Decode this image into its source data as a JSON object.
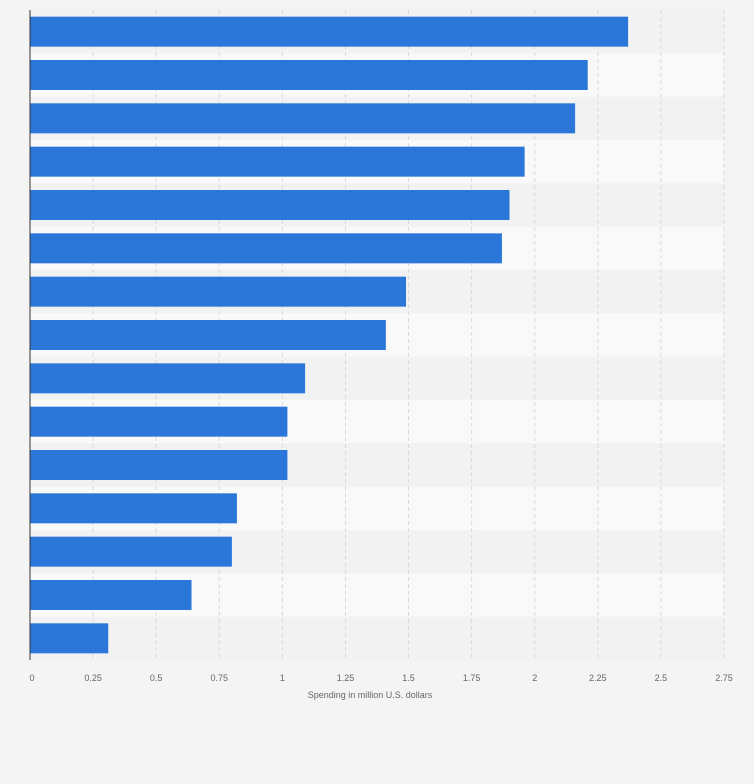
{
  "chart_data": {
    "type": "bar",
    "orientation": "horizontal",
    "values": [
      2.37,
      2.21,
      2.16,
      1.96,
      1.9,
      1.87,
      1.49,
      1.41,
      1.09,
      1.02,
      1.02,
      0.82,
      0.8,
      0.64,
      0.31
    ],
    "x_ticks": [
      "0",
      "0.25",
      "0.5",
      "0.75",
      "1",
      "1.25",
      "1.5",
      "1.75",
      "2",
      "2.25",
      "2.5",
      "2.75"
    ],
    "x_tick_values": [
      0,
      0.25,
      0.5,
      0.75,
      1,
      1.25,
      1.5,
      1.75,
      2,
      2.25,
      2.5,
      2.75
    ],
    "xlabel": "Spending in million U.S. dollars",
    "xlim": [
      0,
      2.75
    ],
    "grid": "vertical dashed",
    "colors": {
      "bar": "#2a77d9",
      "band_dark": "#f2f2f2",
      "band_light": "#f9f9f9",
      "grid": "#d9d9d9",
      "axis": "#333333",
      "tick_text": "#666666",
      "background": "#f4f4f4"
    }
  }
}
